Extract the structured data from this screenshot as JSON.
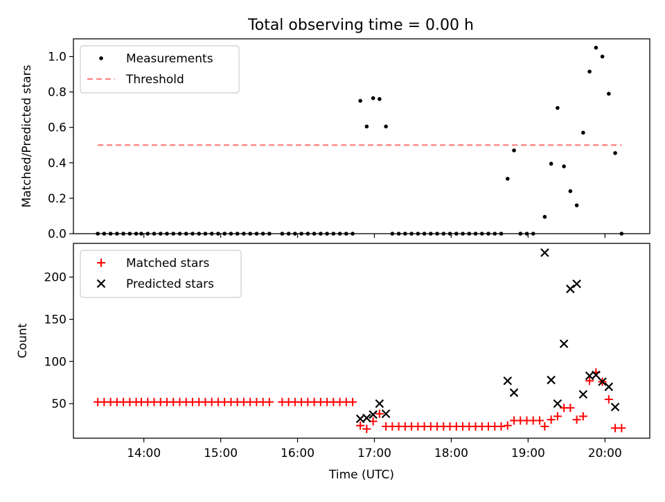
{
  "figure": {
    "title": "Total observing time = 0.00 h"
  },
  "chart_data": [
    {
      "type": "scatter",
      "ylabel": "Matched/Predicted stars",
      "xlabel": "",
      "xlim": [
        "13:05",
        "20:35"
      ],
      "ylim": [
        0,
        1.1
      ],
      "yticks": [
        "0.0",
        "0.2",
        "0.4",
        "0.6",
        "0.8",
        "1.0"
      ],
      "xticks": [
        "14:00",
        "15:00",
        "16:00",
        "17:00",
        "18:00",
        "19:00",
        "20:00"
      ],
      "show_xticklabels": false,
      "legend_position": "upper-left",
      "series": [
        {
          "name": "Measurements",
          "marker": "dot",
          "color": "#000000",
          "points": [
            [
              "13:24",
              0
            ],
            [
              "13:29",
              0
            ],
            [
              "13:34",
              0
            ],
            [
              "13:39",
              0
            ],
            [
              "13:44",
              0
            ],
            [
              "13:49",
              0
            ],
            [
              "13:54",
              0
            ],
            [
              "13:58",
              0
            ],
            [
              "14:03",
              0
            ],
            [
              "14:08",
              0
            ],
            [
              "14:13",
              0
            ],
            [
              "14:18",
              0
            ],
            [
              "14:23",
              0
            ],
            [
              "14:28",
              0
            ],
            [
              "14:33",
              0
            ],
            [
              "14:38",
              0
            ],
            [
              "14:43",
              0
            ],
            [
              "14:48",
              0
            ],
            [
              "14:53",
              0
            ],
            [
              "14:58",
              0
            ],
            [
              "15:03",
              0
            ],
            [
              "15:08",
              0
            ],
            [
              "15:13",
              0
            ],
            [
              "15:18",
              0
            ],
            [
              "15:23",
              0
            ],
            [
              "15:28",
              0
            ],
            [
              "15:33",
              0
            ],
            [
              "15:38",
              0
            ],
            [
              "15:48",
              0
            ],
            [
              "15:53",
              0
            ],
            [
              "15:58",
              0
            ],
            [
              "16:03",
              0
            ],
            [
              "16:08",
              0
            ],
            [
              "16:13",
              0
            ],
            [
              "16:18",
              0
            ],
            [
              "16:23",
              0
            ],
            [
              "16:28",
              0
            ],
            [
              "16:33",
              0
            ],
            [
              "16:38",
              0
            ],
            [
              "16:43",
              0
            ],
            [
              "16:49",
              0.75
            ],
            [
              "16:54",
              0.605
            ],
            [
              "16:59",
              0.765
            ],
            [
              "17:04",
              0.76
            ],
            [
              "17:09",
              0.605
            ],
            [
              "17:14",
              0
            ],
            [
              "17:19",
              0
            ],
            [
              "17:24",
              0
            ],
            [
              "17:29",
              0
            ],
            [
              "17:34",
              0
            ],
            [
              "17:39",
              0
            ],
            [
              "17:44",
              0
            ],
            [
              "17:49",
              0
            ],
            [
              "17:54",
              0
            ],
            [
              "17:59",
              0
            ],
            [
              "18:04",
              0
            ],
            [
              "18:09",
              0
            ],
            [
              "18:14",
              0
            ],
            [
              "18:19",
              0
            ],
            [
              "18:24",
              0
            ],
            [
              "18:29",
              0
            ],
            [
              "18:34",
              0
            ],
            [
              "18:39",
              0
            ],
            [
              "18:44",
              0.31
            ],
            [
              "18:49",
              0.47
            ],
            [
              "18:54",
              0
            ],
            [
              "18:59",
              0
            ],
            [
              "19:04",
              0
            ],
            [
              "19:13",
              0.095
            ],
            [
              "19:18",
              0.395
            ],
            [
              "19:23",
              0.71
            ],
            [
              "19:28",
              0.38
            ],
            [
              "19:33",
              0.24
            ],
            [
              "19:38",
              0.16
            ],
            [
              "19:43",
              0.57
            ],
            [
              "19:48",
              0.915
            ],
            [
              "19:53",
              1.05
            ],
            [
              "19:58",
              1.0
            ],
            [
              "20:03",
              0.79
            ],
            [
              "20:08",
              0.455
            ],
            [
              "20:13",
              0
            ]
          ]
        },
        {
          "name": "Threshold",
          "style": "dashed-line",
          "color": "#ff8080",
          "points": [
            [
              "13:24",
              0.5
            ],
            [
              "20:13",
              0.5
            ]
          ]
        }
      ]
    },
    {
      "type": "scatter",
      "ylabel": "Count",
      "xlabel": "Time (UTC)",
      "xlim": [
        "13:05",
        "20:35"
      ],
      "ylim": [
        9,
        240
      ],
      "yticks": [
        "50",
        "100",
        "150",
        "200"
      ],
      "xticks": [
        "14:00",
        "15:00",
        "16:00",
        "17:00",
        "18:00",
        "19:00",
        "20:00"
      ],
      "show_xticklabels": true,
      "legend_position": "upper-left",
      "series": [
        {
          "name": "Matched stars",
          "marker": "plus",
          "color": "#ff0000",
          "points": [
            [
              "13:24",
              52
            ],
            [
              "13:29",
              52
            ],
            [
              "13:34",
              52
            ],
            [
              "13:39",
              52
            ],
            [
              "13:44",
              52
            ],
            [
              "13:49",
              52
            ],
            [
              "13:54",
              52
            ],
            [
              "13:58",
              52
            ],
            [
              "14:03",
              52
            ],
            [
              "14:08",
              52
            ],
            [
              "14:13",
              52
            ],
            [
              "14:18",
              52
            ],
            [
              "14:23",
              52
            ],
            [
              "14:28",
              52
            ],
            [
              "14:33",
              52
            ],
            [
              "14:38",
              52
            ],
            [
              "14:43",
              52
            ],
            [
              "14:48",
              52
            ],
            [
              "14:53",
              52
            ],
            [
              "14:58",
              52
            ],
            [
              "15:03",
              52
            ],
            [
              "15:08",
              52
            ],
            [
              "15:13",
              52
            ],
            [
              "15:18",
              52
            ],
            [
              "15:23",
              52
            ],
            [
              "15:28",
              52
            ],
            [
              "15:33",
              52
            ],
            [
              "15:38",
              52
            ],
            [
              "15:48",
              52
            ],
            [
              "15:53",
              52
            ],
            [
              "15:58",
              52
            ],
            [
              "16:03",
              52
            ],
            [
              "16:08",
              52
            ],
            [
              "16:13",
              52
            ],
            [
              "16:18",
              52
            ],
            [
              "16:23",
              52
            ],
            [
              "16:28",
              52
            ],
            [
              "16:33",
              52
            ],
            [
              "16:38",
              52
            ],
            [
              "16:43",
              52
            ],
            [
              "16:49",
              24
            ],
            [
              "16:54",
              20
            ],
            [
              "16:59",
              29
            ],
            [
              "17:04",
              38
            ],
            [
              "17:09",
              23
            ],
            [
              "17:14",
              23
            ],
            [
              "17:19",
              23
            ],
            [
              "17:24",
              23
            ],
            [
              "17:29",
              23
            ],
            [
              "17:34",
              23
            ],
            [
              "17:39",
              23
            ],
            [
              "17:44",
              23
            ],
            [
              "17:49",
              23
            ],
            [
              "17:54",
              23
            ],
            [
              "17:59",
              23
            ],
            [
              "18:04",
              23
            ],
            [
              "18:09",
              23
            ],
            [
              "18:14",
              23
            ],
            [
              "18:19",
              23
            ],
            [
              "18:24",
              23
            ],
            [
              "18:29",
              23
            ],
            [
              "18:34",
              23
            ],
            [
              "18:39",
              23
            ],
            [
              "18:44",
              24
            ],
            [
              "18:49",
              30
            ],
            [
              "18:54",
              30
            ],
            [
              "18:59",
              30
            ],
            [
              "19:04",
              30
            ],
            [
              "19:09",
              30
            ],
            [
              "19:13",
              23
            ],
            [
              "19:18",
              31
            ],
            [
              "19:23",
              35
            ],
            [
              "19:28",
              45
            ],
            [
              "19:33",
              45
            ],
            [
              "19:38",
              31
            ],
            [
              "19:43",
              35
            ],
            [
              "19:48",
              77
            ],
            [
              "19:53",
              87
            ],
            [
              "19:58",
              76
            ],
            [
              "20:03",
              55
            ],
            [
              "20:08",
              21
            ],
            [
              "20:13",
              21
            ]
          ]
        },
        {
          "name": "Predicted stars",
          "marker": "x",
          "color": "#000000",
          "points": [
            [
              "16:49",
              32
            ],
            [
              "16:54",
              33
            ],
            [
              "16:59",
              37
            ],
            [
              "17:04",
              50
            ],
            [
              "17:09",
              38
            ],
            [
              "18:44",
              77
            ],
            [
              "18:49",
              63
            ],
            [
              "19:13",
              229
            ],
            [
              "19:18",
              78
            ],
            [
              "19:23",
              50
            ],
            [
              "19:28",
              121
            ],
            [
              "19:33",
              186
            ],
            [
              "19:38",
              192
            ],
            [
              "19:43",
              61
            ],
            [
              "19:48",
              83
            ],
            [
              "19:53",
              84
            ],
            [
              "19:58",
              76
            ],
            [
              "20:03",
              70
            ],
            [
              "20:08",
              46
            ]
          ]
        }
      ]
    }
  ]
}
